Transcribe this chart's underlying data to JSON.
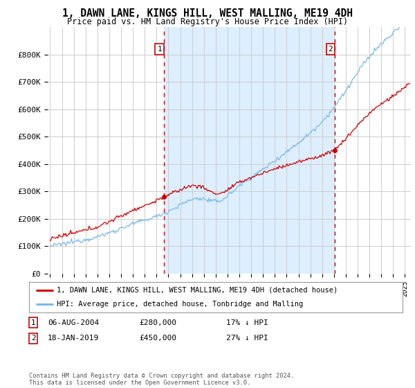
{
  "title": "1, DAWN LANE, KINGS HILL, WEST MALLING, ME19 4DH",
  "subtitle": "Price paid vs. HM Land Registry's House Price Index (HPI)",
  "title_fontsize": 10.5,
  "subtitle_fontsize": 8.5,
  "ylabel_ticks": [
    "£0",
    "£100K",
    "£200K",
    "£300K",
    "£400K",
    "£500K",
    "£600K",
    "£700K",
    "£800K"
  ],
  "ytick_values": [
    0,
    100000,
    200000,
    300000,
    400000,
    500000,
    600000,
    700000,
    800000
  ],
  "ylim": [
    0,
    900000
  ],
  "xlim_start": 1994.8,
  "xlim_end": 2025.5,
  "bg_color": "#ffffff",
  "plot_bg_color": "#ffffff",
  "shade_color": "#ddeeff",
  "grid_color": "#cccccc",
  "hpi_color": "#7ab8e8",
  "price_color": "#cc0000",
  "vline_color": "#cc0000",
  "purchase1_x": 2004.6,
  "purchase1_y": 280000,
  "purchase1_label": "1",
  "purchase2_x": 2019.05,
  "purchase2_y": 450000,
  "purchase2_label": "2",
  "legend_label1": "1, DAWN LANE, KINGS HILL, WEST MALLING, ME19 4DH (detached house)",
  "legend_label2": "HPI: Average price, detached house, Tonbridge and Malling",
  "note1_num": "1",
  "note1_date": "06-AUG-2004",
  "note1_price": "£280,000",
  "note1_pct": "17% ↓ HPI",
  "note2_num": "2",
  "note2_date": "18-JAN-2019",
  "note2_price": "£450,000",
  "note2_pct": "27% ↓ HPI",
  "footer": "Contains HM Land Registry data © Crown copyright and database right 2024.\nThis data is licensed under the Open Government Licence v3.0."
}
